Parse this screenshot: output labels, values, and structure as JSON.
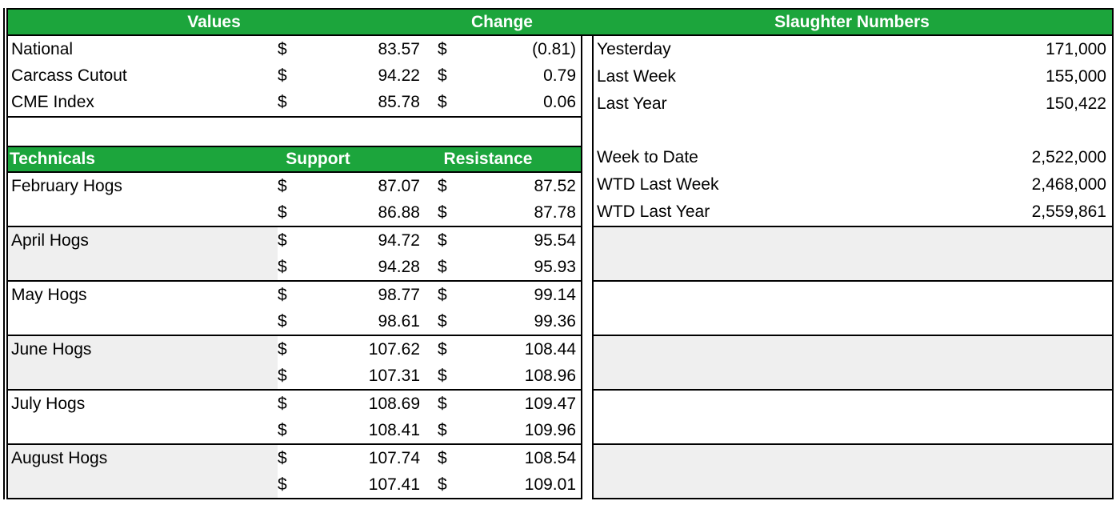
{
  "theme": {
    "header_green": "#1CA53C",
    "header_text_color": "#FFFFFF",
    "shaded_row_color": "#EFEFEF",
    "grid_color": "#000000"
  },
  "top_header": {
    "values_label": "Values",
    "change_label": "Change",
    "slaughter_label": "Slaughter Numbers"
  },
  "values_table": {
    "currency_symbol": "$",
    "rows": [
      {
        "label": "National",
        "value": "83.57",
        "change": "(0.81)"
      },
      {
        "label": "Carcass Cutout",
        "value": "94.22",
        "change": "0.79"
      },
      {
        "label": "CME Index",
        "value": "85.78",
        "change": "0.06"
      }
    ]
  },
  "technicals_table": {
    "title": "Technicals",
    "support_label": "Support",
    "resistance_label": "Resistance",
    "currency_symbol": "$",
    "bands": [
      {
        "label": "February Hogs",
        "shaded": false,
        "rows": [
          {
            "support": "87.07",
            "resistance": "87.52"
          },
          {
            "support": "86.88",
            "resistance": "87.78"
          }
        ]
      },
      {
        "label": "April Hogs",
        "shaded": true,
        "rows": [
          {
            "support": "94.72",
            "resistance": "95.54"
          },
          {
            "support": "94.28",
            "resistance": "95.93"
          }
        ]
      },
      {
        "label": "May Hogs",
        "shaded": false,
        "rows": [
          {
            "support": "98.77",
            "resistance": "99.14"
          },
          {
            "support": "98.61",
            "resistance": "99.36"
          }
        ]
      },
      {
        "label": "June Hogs",
        "shaded": true,
        "rows": [
          {
            "support": "107.62",
            "resistance": "108.44"
          },
          {
            "support": "107.31",
            "resistance": "108.96"
          }
        ]
      },
      {
        "label": "July Hogs",
        "shaded": false,
        "rows": [
          {
            "support": "108.69",
            "resistance": "109.47"
          },
          {
            "support": "108.41",
            "resistance": "109.96"
          }
        ]
      },
      {
        "label": "August Hogs",
        "shaded": true,
        "rows": [
          {
            "support": "107.74",
            "resistance": "108.54"
          },
          {
            "support": "107.41",
            "resistance": "109.01"
          }
        ]
      }
    ]
  },
  "slaughter_table": {
    "rows": [
      {
        "label": "Yesterday",
        "value": "171,000"
      },
      {
        "label": "Last Week",
        "value": "155,000"
      },
      {
        "label": "Last Year",
        "value": "150,422"
      },
      {
        "label": "",
        "value": ""
      },
      {
        "label": "Week to Date",
        "value": "2,522,000"
      },
      {
        "label": "WTD Last Week",
        "value": "2,468,000"
      },
      {
        "label": "WTD Last Year",
        "value": "2,559,861"
      }
    ]
  }
}
